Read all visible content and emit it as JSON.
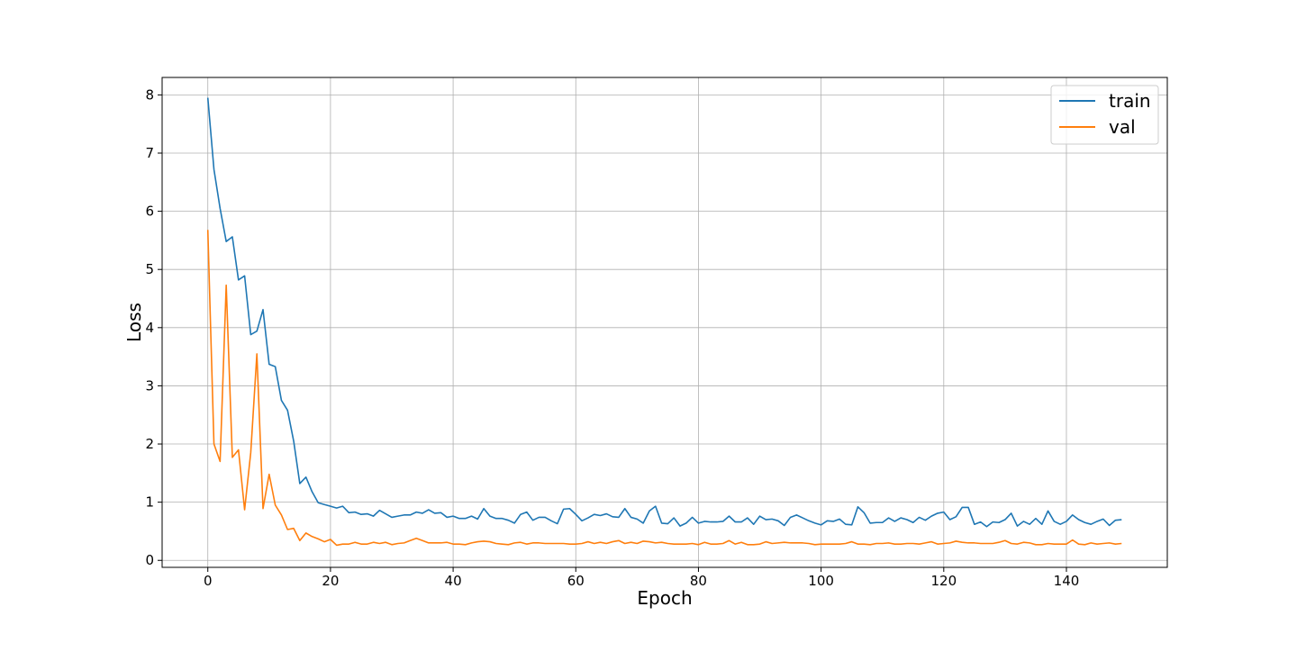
{
  "chart_data": {
    "type": "line",
    "title": "",
    "xlabel": "Epoch",
    "ylabel": "Loss",
    "xlim": [
      -7.45,
      156.45
    ],
    "ylim": [
      -0.12,
      8.3
    ],
    "x_ticks": [
      0,
      20,
      40,
      60,
      80,
      100,
      120,
      140
    ],
    "y_ticks": [
      0,
      1,
      2,
      3,
      4,
      5,
      6,
      7,
      8
    ],
    "grid": true,
    "legend_position": "top-right",
    "x": [
      0,
      1,
      2,
      3,
      4,
      5,
      6,
      7,
      8,
      9,
      10,
      11,
      12,
      13,
      14,
      15,
      16,
      17,
      18,
      19,
      20,
      21,
      22,
      23,
      24,
      25,
      26,
      27,
      28,
      29,
      30,
      31,
      32,
      33,
      34,
      35,
      36,
      37,
      38,
      39,
      40,
      41,
      42,
      43,
      44,
      45,
      46,
      47,
      48,
      49,
      50,
      51,
      52,
      53,
      54,
      55,
      56,
      57,
      58,
      59,
      60,
      61,
      62,
      63,
      64,
      65,
      66,
      67,
      68,
      69,
      70,
      71,
      72,
      73,
      74,
      75,
      76,
      77,
      78,
      79,
      80,
      81,
      82,
      83,
      84,
      85,
      86,
      87,
      88,
      89,
      90,
      91,
      92,
      93,
      94,
      95,
      96,
      97,
      98,
      99,
      100,
      101,
      102,
      103,
      104,
      105,
      106,
      107,
      108,
      109,
      110,
      111,
      112,
      113,
      114,
      115,
      116,
      117,
      118,
      119,
      120,
      121,
      122,
      123,
      124,
      125,
      126,
      127,
      128,
      129,
      130,
      131,
      132,
      133,
      134,
      135,
      136,
      137,
      138,
      139,
      140,
      141,
      142,
      143,
      144,
      145,
      146,
      147,
      148,
      149
    ],
    "series": [
      {
        "name": "train",
        "color": "#1f77b4",
        "values": [
          7.95,
          6.72,
          6.05,
          5.48,
          5.56,
          4.82,
          4.89,
          3.88,
          3.94,
          4.31,
          3.37,
          3.33,
          2.75,
          2.58,
          2.05,
          1.32,
          1.43,
          1.18,
          0.99,
          0.96,
          0.93,
          0.9,
          0.93,
          0.82,
          0.83,
          0.79,
          0.8,
          0.76,
          0.86,
          0.8,
          0.74,
          0.76,
          0.78,
          0.78,
          0.83,
          0.81,
          0.87,
          0.81,
          0.82,
          0.74,
          0.76,
          0.72,
          0.72,
          0.76,
          0.71,
          0.89,
          0.76,
          0.72,
          0.72,
          0.69,
          0.64,
          0.79,
          0.83,
          0.69,
          0.74,
          0.74,
          0.68,
          0.63,
          0.88,
          0.89,
          0.79,
          0.68,
          0.73,
          0.79,
          0.77,
          0.8,
          0.75,
          0.74,
          0.89,
          0.74,
          0.71,
          0.64,
          0.85,
          0.93,
          0.64,
          0.63,
          0.73,
          0.59,
          0.64,
          0.74,
          0.64,
          0.67,
          0.66,
          0.66,
          0.67,
          0.76,
          0.66,
          0.66,
          0.73,
          0.62,
          0.76,
          0.7,
          0.71,
          0.68,
          0.6,
          0.74,
          0.78,
          0.73,
          0.68,
          0.64,
          0.61,
          0.68,
          0.67,
          0.71,
          0.62,
          0.61,
          0.92,
          0.82,
          0.64,
          0.65,
          0.65,
          0.73,
          0.67,
          0.73,
          0.7,
          0.65,
          0.74,
          0.69,
          0.76,
          0.81,
          0.83,
          0.7,
          0.75,
          0.91,
          0.91,
          0.62,
          0.66,
          0.58,
          0.66,
          0.65,
          0.7,
          0.81,
          0.59,
          0.67,
          0.62,
          0.72,
          0.62,
          0.85,
          0.67,
          0.62,
          0.67,
          0.78,
          0.7,
          0.65,
          0.62,
          0.67,
          0.71,
          0.6,
          0.69,
          0.7
        ]
      },
      {
        "name": "val",
        "color": "#ff7f0e",
        "values": [
          5.68,
          2.0,
          1.7,
          4.73,
          1.77,
          1.9,
          0.87,
          1.85,
          3.55,
          0.89,
          1.48,
          0.95,
          0.78,
          0.53,
          0.55,
          0.34,
          0.47,
          0.41,
          0.37,
          0.32,
          0.36,
          0.26,
          0.28,
          0.28,
          0.31,
          0.28,
          0.28,
          0.31,
          0.29,
          0.31,
          0.27,
          0.29,
          0.3,
          0.34,
          0.38,
          0.34,
          0.3,
          0.3,
          0.3,
          0.31,
          0.28,
          0.28,
          0.27,
          0.3,
          0.32,
          0.33,
          0.32,
          0.29,
          0.28,
          0.27,
          0.3,
          0.31,
          0.28,
          0.3,
          0.3,
          0.29,
          0.29,
          0.29,
          0.29,
          0.28,
          0.28,
          0.29,
          0.32,
          0.29,
          0.31,
          0.29,
          0.32,
          0.34,
          0.29,
          0.31,
          0.29,
          0.33,
          0.32,
          0.3,
          0.31,
          0.29,
          0.28,
          0.28,
          0.28,
          0.29,
          0.27,
          0.31,
          0.28,
          0.28,
          0.29,
          0.34,
          0.28,
          0.31,
          0.27,
          0.27,
          0.28,
          0.32,
          0.29,
          0.3,
          0.31,
          0.3,
          0.3,
          0.3,
          0.29,
          0.27,
          0.28,
          0.28,
          0.28,
          0.28,
          0.29,
          0.32,
          0.28,
          0.28,
          0.27,
          0.29,
          0.29,
          0.3,
          0.28,
          0.28,
          0.29,
          0.29,
          0.28,
          0.3,
          0.32,
          0.28,
          0.29,
          0.3,
          0.33,
          0.31,
          0.3,
          0.3,
          0.29,
          0.29,
          0.29,
          0.31,
          0.34,
          0.29,
          0.28,
          0.31,
          0.3,
          0.27,
          0.27,
          0.29,
          0.28,
          0.28,
          0.28,
          0.35,
          0.28,
          0.27,
          0.3,
          0.28,
          0.29,
          0.3,
          0.28,
          0.29
        ]
      }
    ]
  }
}
